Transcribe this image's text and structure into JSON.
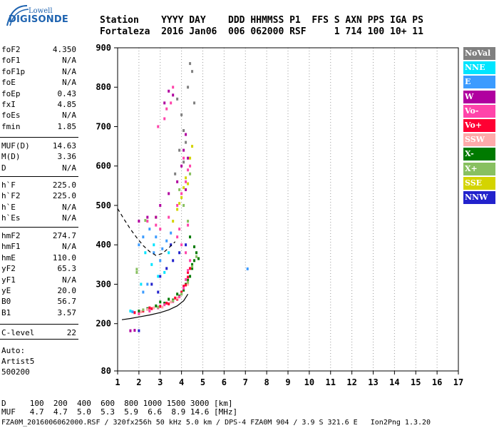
{
  "logo": {
    "brand_top": "Lowell",
    "brand_main": "DIGISONDE"
  },
  "header": {
    "line1": "Station    YYYY DAY    DDD HHMMSS P1  FFS S AXN PPS IGA PS",
    "line2": "Fortaleza  2016 Jan06  006 062000 RSF     1 714 100 10+ 11"
  },
  "params_group1": [
    {
      "name": "foF2",
      "value": "4.350"
    },
    {
      "name": "foF1",
      "value": "N/A"
    },
    {
      "name": "foF1p",
      "value": "N/A"
    },
    {
      "name": "foE",
      "value": "N/A"
    },
    {
      "name": "foEp",
      "value": "0.43"
    },
    {
      "name": "fxI",
      "value": "4.85"
    },
    {
      "name": "foEs",
      "value": "N/A"
    },
    {
      "name": "fmin",
      "value": "1.85"
    }
  ],
  "params_group2": [
    {
      "name": "MUF(D)",
      "value": "14.63"
    },
    {
      "name": "M(D)",
      "value": "3.36"
    },
    {
      "name": "D",
      "value": "N/A"
    }
  ],
  "params_group3": [
    {
      "name": "h`F",
      "value": "225.0"
    },
    {
      "name": "h`F2",
      "value": "225.0"
    },
    {
      "name": "h`E",
      "value": "N/A"
    },
    {
      "name": "h`Es",
      "value": "N/A"
    }
  ],
  "params_group4": [
    {
      "name": "hmF2",
      "value": "274.7"
    },
    {
      "name": "hmF1",
      "value": "N/A"
    },
    {
      "name": "hmE",
      "value": "110.0"
    },
    {
      "name": "yF2",
      "value": "65.3"
    },
    {
      "name": "yF1",
      "value": "N/A"
    },
    {
      "name": "yE",
      "value": "20.0"
    },
    {
      "name": "B0",
      "value": "56.7"
    },
    {
      "name": "B1",
      "value": "3.57"
    }
  ],
  "params_group5": [
    {
      "name": "C-level",
      "value": "22"
    }
  ],
  "autoscale": {
    "line1": "Auto:",
    "line2": "Artist5",
    "line3": "500200"
  },
  "bottom": {
    "d_row": "D     100  200  400  600  800 1000 1500 3000 [km]",
    "muf_row": "MUF   4.7  4.7  5.0  5.3  5.9  6.6  8.9 14.6 [MHz]",
    "footer": "FZA0M_2016006062000.RSF / 320fx256h 50 kHz 5.0 km / DPS-4 FZA0M 904 / 3.9 S 321.6 E   Ion2Png 1.3.20"
  },
  "legend": [
    {
      "label": "NoVal",
      "color": "#808080"
    },
    {
      "label": "NNE",
      "color": "#00e5ff"
    },
    {
      "label": "E",
      "color": "#3b9bff"
    },
    {
      "label": "W",
      "color": "#b0009f"
    },
    {
      "label": "Vo-",
      "color": "#ff44aa"
    },
    {
      "label": "Vo+",
      "color": "#ff0033"
    },
    {
      "label": "SSW",
      "color": "#ffaaaa"
    },
    {
      "label": "X-",
      "color": "#007a00"
    },
    {
      "label": "X+",
      "color": "#88c060"
    },
    {
      "label": "SSE",
      "color": "#d4d400"
    },
    {
      "label": "NNW",
      "color": "#2222cc"
    }
  ],
  "chart_data": {
    "type": "scatter",
    "title": "",
    "xlabel": "",
    "ylabel": "",
    "xlim": [
      1,
      17
    ],
    "ylim": [
      80,
      900
    ],
    "x_ticks": [
      1,
      2,
      3,
      4,
      5,
      6,
      7,
      8,
      9,
      10,
      11,
      12,
      13,
      14,
      15,
      16,
      17
    ],
    "y_ticks": [
      80,
      200,
      300,
      400,
      500,
      600,
      700,
      800,
      900
    ],
    "grid": "dotted vertical at integer MHz",
    "series": [
      {
        "name": "X-",
        "color": "#007a00",
        "points": [
          [
            2.0,
            232
          ],
          [
            2.4,
            238
          ],
          [
            2.8,
            245
          ],
          [
            3.2,
            252
          ],
          [
            3.6,
            260
          ],
          [
            3.9,
            270
          ],
          [
            4.1,
            285
          ],
          [
            4.2,
            300
          ],
          [
            4.4,
            320
          ],
          [
            4.5,
            340
          ],
          [
            4.6,
            360
          ],
          [
            4.7,
            380
          ],
          [
            3.0,
            255
          ],
          [
            3.4,
            262
          ],
          [
            3.8,
            275
          ],
          [
            4.3,
            310
          ],
          [
            4.5,
            350
          ],
          [
            4.8,
            365
          ],
          [
            4.6,
            395
          ],
          [
            4.4,
            420
          ]
        ]
      },
      {
        "name": "Vo+",
        "color": "#ff0033",
        "points": [
          [
            1.8,
            228
          ],
          [
            2.2,
            232
          ],
          [
            2.6,
            238
          ],
          [
            3.0,
            244
          ],
          [
            3.4,
            250
          ],
          [
            3.8,
            262
          ],
          [
            4.0,
            280
          ],
          [
            4.2,
            298
          ],
          [
            4.3,
            318
          ],
          [
            4.4,
            340
          ],
          [
            2.5,
            240
          ],
          [
            3.3,
            252
          ],
          [
            3.7,
            265
          ],
          [
            4.1,
            295
          ],
          [
            4.3,
            330
          ]
        ]
      },
      {
        "name": "Vo-",
        "color": "#ff44aa",
        "points": [
          [
            2.0,
            225
          ],
          [
            2.5,
            232
          ],
          [
            2.9,
            240
          ],
          [
            3.2,
            248
          ],
          [
            3.6,
            256
          ],
          [
            3.9,
            268
          ],
          [
            4.1,
            290
          ],
          [
            4.2,
            312
          ],
          [
            4.3,
            335
          ],
          [
            4.4,
            360
          ],
          [
            4.2,
            380
          ],
          [
            4.0,
            400
          ],
          [
            3.8,
            420
          ],
          [
            3.0,
            440
          ],
          [
            2.4,
            460
          ],
          [
            2.8,
            450
          ],
          [
            3.4,
            470
          ],
          [
            3.8,
            500
          ],
          [
            4.0,
            530
          ],
          [
            4.2,
            560
          ],
          [
            4.3,
            590
          ],
          [
            4.1,
            620
          ],
          [
            3.2,
            720
          ],
          [
            3.5,
            760
          ],
          [
            3.6,
            800
          ],
          [
            3.3,
            745
          ],
          [
            2.9,
            700
          ],
          [
            4.3,
            450
          ],
          [
            3.9,
            440
          ],
          [
            4.4,
            600
          ]
        ]
      },
      {
        "name": "SSW",
        "color": "#ffaaaa",
        "points": [
          [
            2.1,
            230
          ],
          [
            2.7,
            240
          ],
          [
            3.5,
            255
          ],
          [
            4.0,
            275
          ],
          [
            4.3,
            300
          ],
          [
            3.1,
            242
          ],
          [
            2.4,
            236
          ],
          [
            3.8,
            265
          ]
        ]
      },
      {
        "name": "X+",
        "color": "#88c060",
        "points": [
          [
            2.2,
            235
          ],
          [
            2.9,
            242
          ],
          [
            3.6,
            258
          ],
          [
            4.0,
            275
          ],
          [
            4.3,
            305
          ],
          [
            4.5,
            345
          ],
          [
            4.7,
            370
          ],
          [
            4.3,
            460
          ],
          [
            4.1,
            500
          ],
          [
            3.9,
            540
          ],
          [
            4.4,
            580
          ],
          [
            2.3,
            462
          ],
          [
            1.9,
            338
          ],
          [
            1.9,
            330
          ]
        ]
      },
      {
        "name": "SSE",
        "color": "#d4d400",
        "points": [
          [
            3.6,
            460
          ],
          [
            3.8,
            490
          ],
          [
            4.0,
            520
          ],
          [
            4.1,
            545
          ],
          [
            4.2,
            570
          ],
          [
            4.3,
            555
          ],
          [
            3.9,
            505
          ],
          [
            2.8,
            470
          ],
          [
            4.4,
            620
          ],
          [
            4.5,
            650
          ]
        ]
      },
      {
        "name": "E",
        "color": "#3b9bff",
        "points": [
          [
            2.0,
            400
          ],
          [
            2.2,
            420
          ],
          [
            2.5,
            440
          ],
          [
            2.7,
            380
          ],
          [
            3.0,
            360
          ],
          [
            3.3,
            410
          ],
          [
            2.4,
            300
          ],
          [
            2.2,
            280
          ],
          [
            1.7,
            230
          ],
          [
            3.5,
            430
          ],
          [
            2.8,
            420
          ],
          [
            3.1,
            390
          ],
          [
            7.1,
            339
          ]
        ]
      },
      {
        "name": "NNE",
        "color": "#00e5ff",
        "points": [
          [
            2.3,
            380
          ],
          [
            2.6,
            350
          ],
          [
            2.9,
            320
          ],
          [
            3.2,
            330
          ],
          [
            2.1,
            300
          ],
          [
            2.7,
            400
          ],
          [
            3.4,
            380
          ],
          [
            1.6,
            232
          ]
        ]
      },
      {
        "name": "W",
        "color": "#b0009f",
        "points": [
          [
            2.8,
            470
          ],
          [
            3.0,
            500
          ],
          [
            3.4,
            530
          ],
          [
            3.8,
            560
          ],
          [
            4.0,
            600
          ],
          [
            4.1,
            640
          ],
          [
            4.2,
            680
          ],
          [
            3.6,
            780
          ],
          [
            3.4,
            790
          ],
          [
            3.2,
            760
          ],
          [
            2.0,
            460
          ],
          [
            2.4,
            470
          ],
          [
            1.6,
            182
          ],
          [
            1.8,
            183
          ],
          [
            4.3,
            620
          ],
          [
            4.2,
            540
          ]
        ]
      },
      {
        "name": "NNW",
        "color": "#2222cc",
        "points": [
          [
            3.0,
            320
          ],
          [
            3.3,
            340
          ],
          [
            3.6,
            360
          ],
          [
            3.9,
            380
          ],
          [
            4.2,
            400
          ],
          [
            2.6,
            300
          ],
          [
            2.9,
            280
          ],
          [
            2.0,
            182
          ],
          [
            3.5,
            400
          ]
        ]
      },
      {
        "name": "NoVal",
        "color": "#808080",
        "points": [
          [
            3.8,
            770
          ],
          [
            4.0,
            730
          ],
          [
            4.1,
            690
          ],
          [
            3.9,
            640
          ],
          [
            4.2,
            660
          ],
          [
            4.4,
            860
          ],
          [
            4.5,
            840
          ],
          [
            4.3,
            800
          ],
          [
            4.6,
            760
          ],
          [
            4.1,
            610
          ],
          [
            3.7,
            580
          ]
        ]
      }
    ],
    "curves": [
      {
        "name": "profile",
        "style": "solid",
        "points": [
          [
            1.2,
            210
          ],
          [
            1.6,
            213
          ],
          [
            2.0,
            217
          ],
          [
            2.5,
            222
          ],
          [
            3.0,
            228
          ],
          [
            3.4,
            235
          ],
          [
            3.8,
            245
          ],
          [
            4.1,
            258
          ],
          [
            4.3,
            275
          ]
        ]
      },
      {
        "name": "profile-extrapolated",
        "style": "dashed",
        "points": [
          [
            1.0,
            492
          ],
          [
            1.3,
            465
          ],
          [
            1.6,
            440
          ],
          [
            1.9,
            418
          ],
          [
            2.2,
            398
          ],
          [
            2.5,
            383
          ],
          [
            2.8,
            373
          ],
          [
            3.1,
            378
          ],
          [
            3.4,
            392
          ],
          [
            3.7,
            408
          ]
        ]
      }
    ]
  }
}
